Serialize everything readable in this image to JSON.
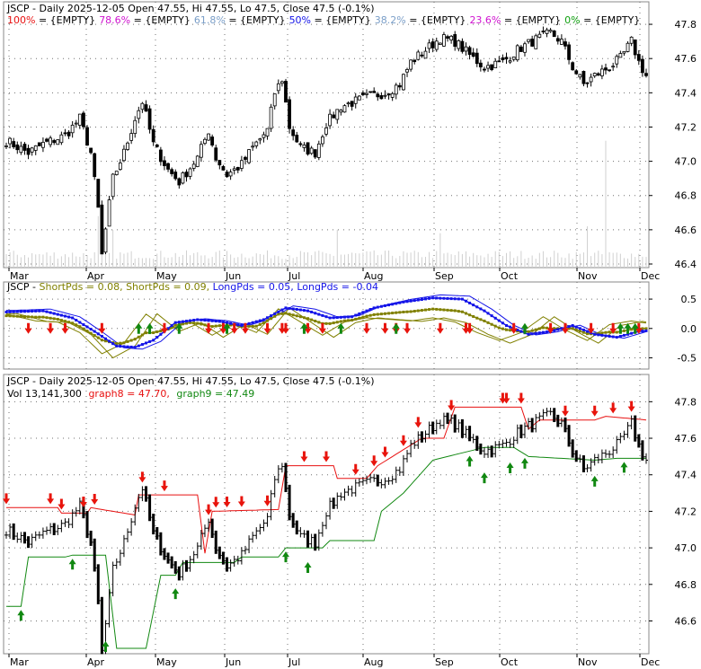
{
  "colors": {
    "up": "#ffffff",
    "down": "#000000",
    "sell": "#e8140c",
    "buy": "#118811",
    "fib100": "#e81010",
    "fib786": "#d012d0",
    "fib618": "#7a9ec8",
    "fib50": "#1414e8",
    "fib382": "#7a9ec8",
    "fib236": "#d012d0",
    "fib0": "#10a010",
    "shortpds": "#808000",
    "longpds": "#1414e8",
    "graph8": "#e81010",
    "graph9": "#118811",
    "grid": "#707070",
    "volume": "#d0d0d0"
  },
  "panel1": {
    "title": "JSCP - Daily 2025-12-05 Open 47.55, Hi 47.55, Lo 47.5, Close 47.5 (-0.1%)",
    "fib": [
      {
        "label": "100%",
        "value": "{EMPTY}",
        "color_key": "fib100"
      },
      {
        "label": "78.6%",
        "value": "{EMPTY}",
        "color_key": "fib786"
      },
      {
        "label": "61.8%",
        "value": "{EMPTY}",
        "color_key": "fib618"
      },
      {
        "label": "50%",
        "value": "{EMPTY}",
        "color_key": "fib50"
      },
      {
        "label": "38.2%",
        "value": "{EMPTY}",
        "color_key": "fib382"
      },
      {
        "label": "23.6%",
        "value": "{EMPTY}",
        "color_key": "fib236"
      },
      {
        "label": "0%",
        "value": "{EMPTY}",
        "color_key": "fib0"
      }
    ],
    "fib_sep": " = ",
    "y_ticks": [
      "47.8",
      "47.6",
      "47.4",
      "47.2",
      "47.0",
      "46.8",
      "46.6",
      "46.4"
    ],
    "x_ticks": [
      "Mar",
      "Apr",
      "May",
      "Jun",
      "Jul",
      "Aug",
      "Sep",
      "Oct",
      "Nov",
      "Dec"
    ]
  },
  "panel2": {
    "legend": [
      {
        "text": "JSCP - ",
        "color_key": "down"
      },
      {
        "text": "ShortPds = 0.08, ",
        "color_key": "shortpds"
      },
      {
        "text": "ShortPds = 0.09, ",
        "color_key": "shortpds"
      },
      {
        "text": "LongPds = 0.05, ",
        "color_key": "longpds"
      },
      {
        "text": "LongPds = -0.04",
        "color_key": "longpds"
      }
    ],
    "y_ticks": [
      "0.5",
      "0.0",
      "-0.5"
    ]
  },
  "panel3": {
    "title": "JSCP - Daily 2025-12-05 Open 47.55, Hi 47.55, Lo 47.5, Close 47.5 (-0.1%)",
    "legend_vol": "Vol 13,141,300",
    "legend_g8": "graph8 = 47.70,",
    "legend_g9": "graph9 = 47.49",
    "y_ticks": [
      "47.8",
      "47.6",
      "47.4",
      "47.2",
      "47.0",
      "46.8",
      "46.6"
    ],
    "x_ticks": [
      "Mar",
      "Apr",
      "May",
      "Jun",
      "Jul",
      "Aug",
      "Sep",
      "Oct",
      "Nov",
      "Dec"
    ]
  },
  "chart_data": [
    {
      "type": "candlestick",
      "title": "JSCP - Daily 2025-12-05 Open 47.55, Hi 47.55, Lo 47.5, Close 47.5 (-0.1%)",
      "ylim": [
        46.4,
        47.9
      ],
      "x_ticks": [
        "Mar",
        "Apr",
        "May",
        "Jun",
        "Jul",
        "Aug",
        "Sep",
        "Oct",
        "Nov",
        "Dec"
      ],
      "close_anchors": [
        [
          0,
          47.12
        ],
        [
          6,
          47.05
        ],
        [
          10,
          47.1
        ],
        [
          16,
          47.15
        ],
        [
          20,
          47.25
        ],
        [
          23,
          47.05
        ],
        [
          25,
          46.72
        ],
        [
          26,
          46.45
        ],
        [
          29,
          46.9
        ],
        [
          32,
          47.05
        ],
        [
          35,
          47.25
        ],
        [
          37,
          47.35
        ],
        [
          40,
          47.1
        ],
        [
          44,
          46.95
        ],
        [
          47,
          46.88
        ],
        [
          52,
          47.02
        ],
        [
          55,
          47.18
        ],
        [
          57,
          47.02
        ],
        [
          60,
          46.92
        ],
        [
          64,
          46.98
        ],
        [
          67,
          47.08
        ],
        [
          71,
          47.18
        ],
        [
          73,
          47.4
        ],
        [
          75,
          47.48
        ],
        [
          77,
          47.2
        ],
        [
          80,
          47.08
        ],
        [
          84,
          47.05
        ],
        [
          87,
          47.22
        ],
        [
          91,
          47.32
        ],
        [
          95,
          47.35
        ],
        [
          99,
          47.38
        ],
        [
          103,
          47.4
        ],
        [
          107,
          47.45
        ],
        [
          110,
          47.58
        ],
        [
          114,
          47.65
        ],
        [
          118,
          47.72
        ],
        [
          122,
          47.7
        ],
        [
          126,
          47.62
        ],
        [
          130,
          47.55
        ],
        [
          135,
          47.58
        ],
        [
          139,
          47.65
        ],
        [
          143,
          47.7
        ],
        [
          148,
          47.75
        ],
        [
          151,
          47.7
        ],
        [
          154,
          47.55
        ],
        [
          157,
          47.45
        ],
        [
          160,
          47.5
        ],
        [
          164,
          47.55
        ],
        [
          167,
          47.6
        ],
        [
          170,
          47.7
        ],
        [
          172,
          47.58
        ],
        [
          174,
          47.5
        ]
      ],
      "volume_spikes": [
        [
          25,
          46.68
        ],
        [
          26,
          46.72
        ],
        [
          29,
          46.6
        ],
        [
          90,
          46.6
        ],
        [
          118,
          46.58
        ],
        [
          158,
          46.62
        ],
        [
          163,
          47.12
        ]
      ]
    },
    {
      "type": "line",
      "series": [
        {
          "name": "ShortPds",
          "last": 0.08
        },
        {
          "name": "ShortPds",
          "last": 0.09
        },
        {
          "name": "LongPds",
          "last": 0.05
        },
        {
          "name": "LongPds",
          "last": -0.04
        }
      ],
      "ylim": [
        -0.6,
        0.7
      ],
      "y_ticks": [
        0.5,
        0.0,
        -0.5
      ],
      "long_anchors": [
        [
          0,
          0.28
        ],
        [
          10,
          0.3
        ],
        [
          18,
          0.18
        ],
        [
          24,
          -0.05
        ],
        [
          30,
          -0.3
        ],
        [
          35,
          -0.32
        ],
        [
          40,
          -0.2
        ],
        [
          46,
          0.1
        ],
        [
          52,
          0.15
        ],
        [
          58,
          0.12
        ],
        [
          64,
          0.05
        ],
        [
          70,
          0.15
        ],
        [
          76,
          0.35
        ],
        [
          82,
          0.3
        ],
        [
          88,
          0.18
        ],
        [
          94,
          0.2
        ],
        [
          100,
          0.35
        ],
        [
          108,
          0.45
        ],
        [
          116,
          0.52
        ],
        [
          124,
          0.5
        ],
        [
          130,
          0.3
        ],
        [
          136,
          0.05
        ],
        [
          142,
          -0.1
        ],
        [
          148,
          -0.05
        ],
        [
          154,
          0.05
        ],
        [
          160,
          -0.1
        ],
        [
          166,
          -0.15
        ],
        [
          172,
          -0.05
        ],
        [
          174,
          -0.04
        ]
      ],
      "short_anchors": [
        [
          0,
          0.25
        ],
        [
          8,
          0.12
        ],
        [
          14,
          0.1
        ],
        [
          20,
          -0.1
        ],
        [
          26,
          -0.5
        ],
        [
          32,
          -0.3
        ],
        [
          38,
          0.25
        ],
        [
          44,
          -0.05
        ],
        [
          50,
          0.1
        ],
        [
          56,
          -0.15
        ],
        [
          62,
          0.08
        ],
        [
          68,
          -0.1
        ],
        [
          74,
          0.35
        ],
        [
          80,
          0.1
        ],
        [
          86,
          -0.15
        ],
        [
          92,
          0.1
        ],
        [
          98,
          0.18
        ],
        [
          104,
          0.15
        ],
        [
          110,
          0.12
        ],
        [
          116,
          0.18
        ],
        [
          122,
          0.1
        ],
        [
          128,
          -0.1
        ],
        [
          134,
          -0.25
        ],
        [
          140,
          -0.1
        ],
        [
          146,
          0.2
        ],
        [
          152,
          -0.05
        ],
        [
          158,
          -0.25
        ],
        [
          164,
          0.05
        ],
        [
          170,
          0.12
        ],
        [
          174,
          0.08
        ]
      ],
      "sell_bars": [
        6,
        12,
        16,
        26,
        43,
        55,
        59,
        62,
        65,
        71,
        75,
        76,
        82,
        86,
        98,
        103,
        106,
        109,
        118,
        125,
        126,
        138,
        148,
        152,
        159,
        165,
        172
      ],
      "buy_bars": [
        36,
        39,
        47,
        60,
        81,
        91,
        106,
        141,
        167,
        169,
        171
      ]
    },
    {
      "type": "candlestick",
      "title": "JSCP - Daily 2025-12-05 Open 47.55, Hi 47.55, Lo 47.5, Close 47.5 (-0.1%)",
      "ylim": [
        46.45,
        47.9
      ],
      "y_ticks": [
        47.8,
        47.6,
        47.4,
        47.2,
        47.0,
        46.8,
        46.6
      ],
      "graph8_last": 47.7,
      "graph9_last": 47.49,
      "volume": 13141300,
      "graph8_anchors": [
        [
          0,
          47.22
        ],
        [
          14,
          47.22
        ],
        [
          15,
          47.19
        ],
        [
          22,
          47.19
        ],
        [
          23,
          47.22
        ],
        [
          35,
          47.18
        ],
        [
          36,
          47.29
        ],
        [
          52,
          47.29
        ],
        [
          54,
          46.97
        ],
        [
          56,
          47.2
        ],
        [
          74,
          47.21
        ],
        [
          76,
          47.45
        ],
        [
          89,
          47.45
        ],
        [
          90,
          47.38
        ],
        [
          98,
          47.38
        ],
        [
          101,
          47.45
        ],
        [
          113,
          47.6
        ],
        [
          119,
          47.6
        ],
        [
          122,
          47.77
        ],
        [
          140,
          47.77
        ],
        [
          142,
          47.65
        ],
        [
          145,
          47.7
        ],
        [
          160,
          47.7
        ],
        [
          163,
          47.72
        ],
        [
          174,
          47.7
        ]
      ],
      "graph9_anchors": [
        [
          0,
          46.68
        ],
        [
          4,
          46.68
        ],
        [
          6,
          46.95
        ],
        [
          16,
          46.95
        ],
        [
          18,
          46.96
        ],
        [
          27,
          46.96
        ],
        [
          30,
          46.45
        ],
        [
          38,
          46.45
        ],
        [
          42,
          46.85
        ],
        [
          46,
          46.85
        ],
        [
          48,
          46.92
        ],
        [
          62,
          46.92
        ],
        [
          64,
          46.95
        ],
        [
          74,
          46.95
        ],
        [
          76,
          47.0
        ],
        [
          86,
          47.0
        ],
        [
          88,
          47.04
        ],
        [
          100,
          47.04
        ],
        [
          102,
          47.2
        ],
        [
          108,
          47.3
        ],
        [
          116,
          47.48
        ],
        [
          124,
          47.52
        ],
        [
          130,
          47.55
        ],
        [
          138,
          47.55
        ],
        [
          142,
          47.5
        ],
        [
          160,
          47.48
        ],
        [
          166,
          47.49
        ],
        [
          174,
          47.49
        ]
      ],
      "sell_bars": [
        0,
        12,
        15,
        21,
        24,
        37,
        43,
        55,
        57,
        60,
        64,
        71,
        81,
        87,
        95,
        100,
        103,
        108,
        112,
        121,
        135,
        136,
        140,
        152,
        160,
        165,
        170
      ],
      "buy_bars": [
        4,
        18,
        27,
        46,
        76,
        82,
        126,
        130,
        137,
        141,
        160,
        168
      ]
    }
  ]
}
